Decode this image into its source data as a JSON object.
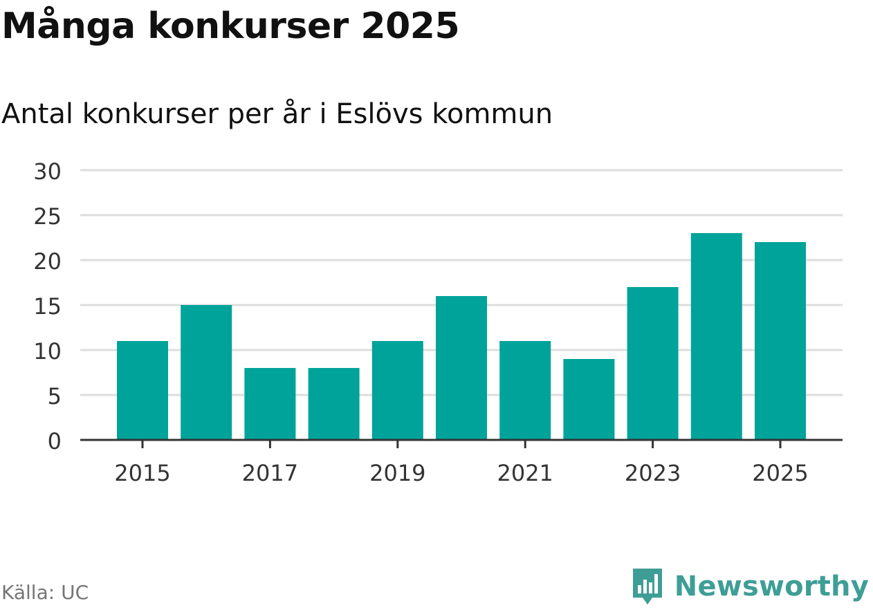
{
  "title": "Många konkurser 2025",
  "subtitle": "Antal konkurser per år i Eslövs kommun",
  "source": "Källa: UC",
  "brand": {
    "name": "Newsworthy",
    "logo_icon": "newsworthy-bar-chart-logo-icon",
    "color": "#3e9e96"
  },
  "colors": {
    "bar": "#00a39a",
    "grid": "#dddddd",
    "axis": "#333333",
    "text": "#333333"
  },
  "chart_data": {
    "type": "bar",
    "categories": [
      "2015",
      "2016",
      "2017",
      "2018",
      "2019",
      "2020",
      "2021",
      "2022",
      "2023",
      "2024",
      "2025"
    ],
    "values": [
      11,
      15,
      8,
      8,
      11,
      16,
      11,
      9,
      17,
      23,
      22
    ],
    "x_tick_labels": [
      "2015",
      "2017",
      "2019",
      "2021",
      "2023",
      "2025"
    ],
    "y_ticks": [
      0,
      5,
      10,
      15,
      20,
      25,
      30
    ],
    "ylim": [
      0,
      30
    ],
    "title": "Många konkurser 2025",
    "subtitle": "Antal konkurser per år i Eslövs kommun",
    "xlabel": "",
    "ylabel": "",
    "grid": true,
    "legend": "none"
  }
}
